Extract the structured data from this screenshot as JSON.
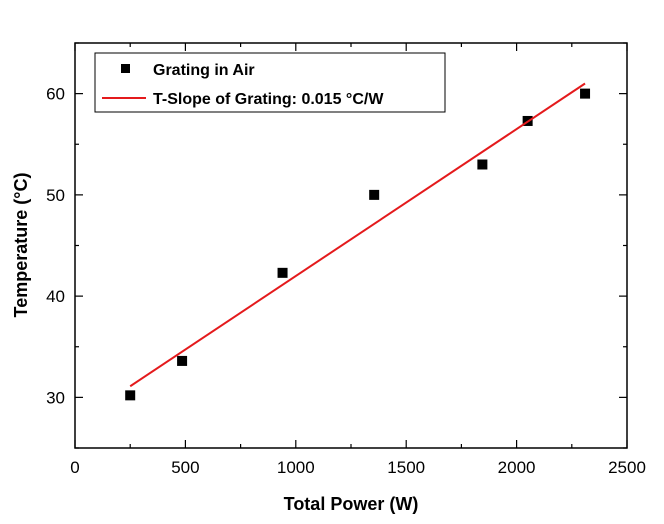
{
  "chart_data": {
    "type": "scatter",
    "title": "",
    "xlabel": "Total Power (W)",
    "ylabel": "Temperature (°C)",
    "xlim": [
      0,
      2500
    ],
    "ylim": [
      25,
      65
    ],
    "xticks": [
      0,
      500,
      1000,
      1500,
      2000,
      2500
    ],
    "yticks": [
      30,
      40,
      50,
      60
    ],
    "xtick_labels": [
      "0",
      "500",
      "1000",
      "1500",
      "2000",
      "2500"
    ],
    "ytick_labels": [
      "30",
      "40",
      "50",
      "60"
    ],
    "grid": false,
    "legend_position": "top-left",
    "series": [
      {
        "name": "Grating in Air",
        "type": "scatter",
        "marker": "square",
        "color": "#000000",
        "x": [
          250,
          485,
          940,
          1355,
          1845,
          2050,
          2310
        ],
        "y": [
          30.2,
          33.6,
          42.3,
          50.0,
          53.0,
          57.3,
          60.0
        ]
      },
      {
        "name": "T-Slope of Grating: 0.015 °C/W",
        "type": "line",
        "color": "#e41a1c",
        "x": [
          250,
          2310
        ],
        "y": [
          31.1,
          61.0
        ]
      }
    ]
  }
}
